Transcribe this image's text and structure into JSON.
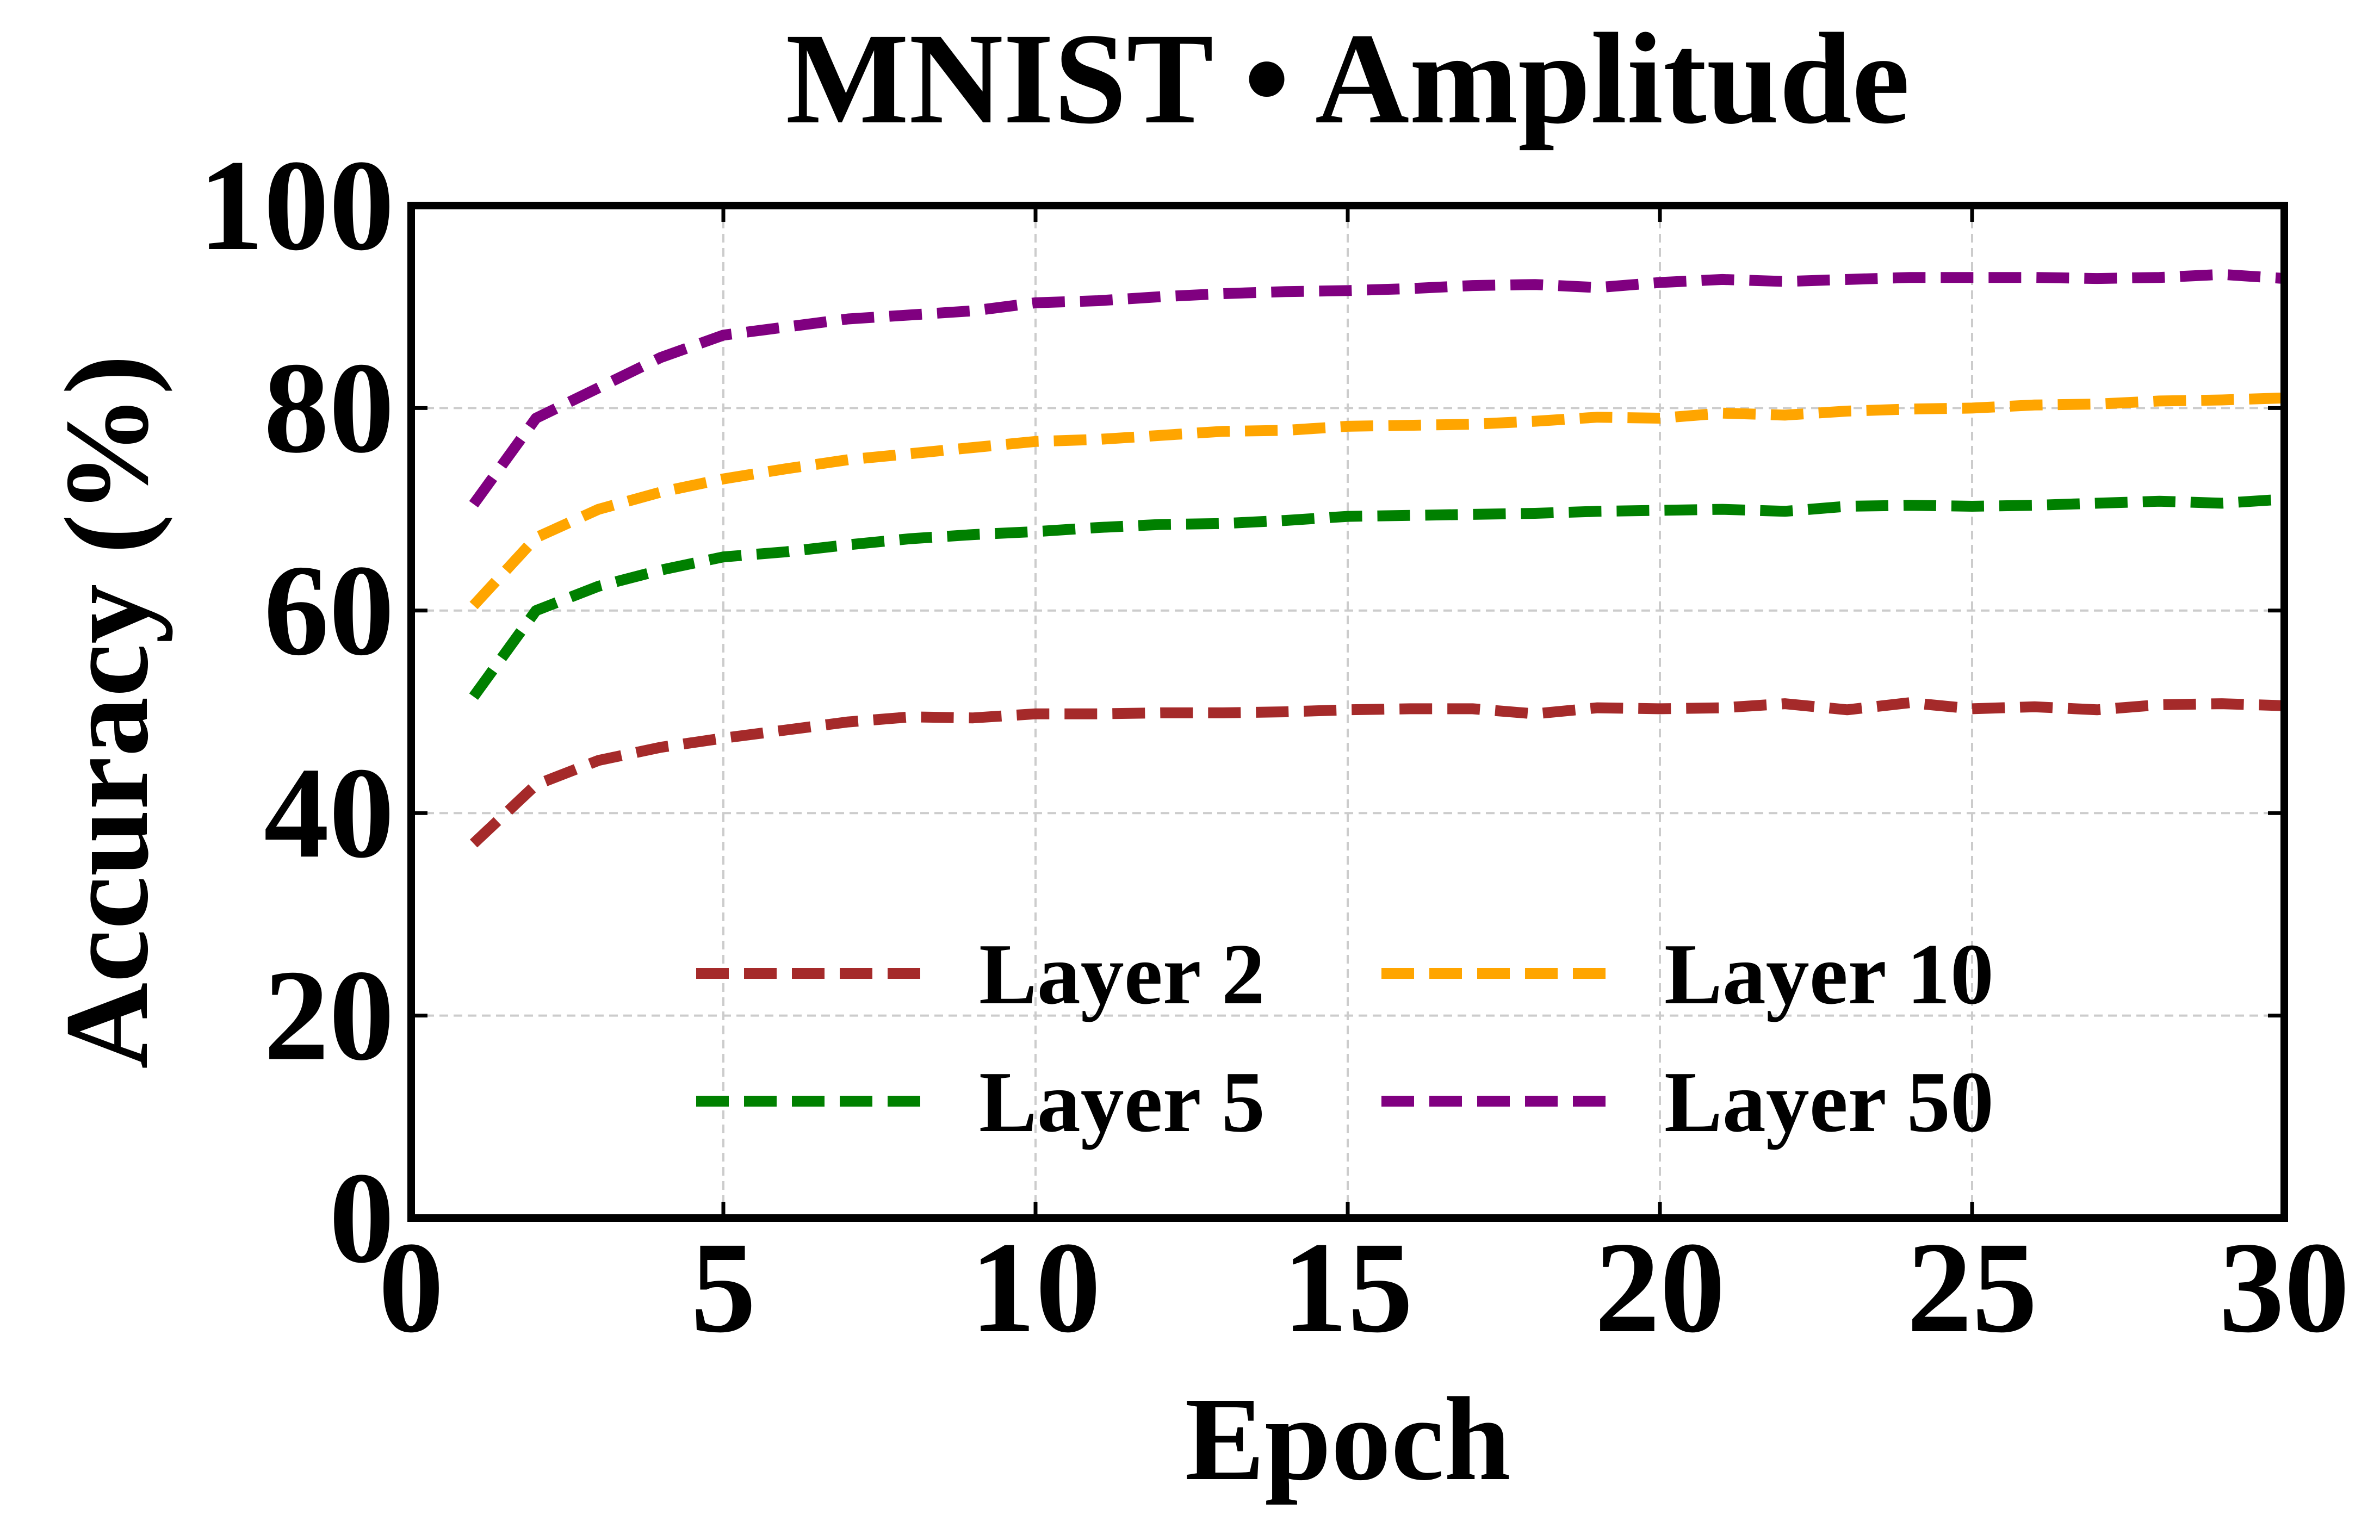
{
  "chart_data": {
    "type": "line",
    "title": "MNIST • Amplitude",
    "xlabel": "Epoch",
    "ylabel": "Accuracy (%)",
    "xlim": [
      0,
      30
    ],
    "ylim": [
      0,
      100
    ],
    "xticks": [
      0,
      5,
      10,
      15,
      20,
      25,
      30
    ],
    "yticks": [
      0,
      20,
      40,
      60,
      80,
      100
    ],
    "grid": true,
    "legend_position": "lower-center",
    "x": [
      1,
      2,
      3,
      4,
      5,
      6,
      7,
      8,
      9,
      10,
      11,
      12,
      13,
      14,
      15,
      16,
      17,
      18,
      19,
      20,
      21,
      22,
      23,
      24,
      25,
      26,
      27,
      28,
      29,
      30
    ],
    "series": [
      {
        "name": "Layer 2",
        "color": "#a52a2a",
        "values": [
          37.0,
          42.8,
          45.2,
          46.5,
          47.4,
          48.2,
          49.0,
          49.5,
          49.4,
          49.8,
          49.8,
          49.9,
          49.9,
          50.0,
          50.2,
          50.3,
          50.3,
          49.8,
          50.4,
          50.3,
          50.4,
          50.8,
          50.2,
          50.9,
          50.3,
          50.5,
          50.2,
          50.7,
          50.8,
          50.6
        ]
      },
      {
        "name": "Layer 5",
        "color": "#008000",
        "values": [
          51.5,
          60.0,
          62.4,
          64.0,
          65.3,
          65.8,
          66.5,
          67.1,
          67.5,
          67.8,
          68.2,
          68.5,
          68.6,
          68.9,
          69.3,
          69.4,
          69.5,
          69.6,
          69.8,
          69.9,
          70.0,
          69.8,
          70.3,
          70.4,
          70.3,
          70.4,
          70.6,
          70.8,
          70.6,
          71.0
        ]
      },
      {
        "name": "Layer 10",
        "color": "#ffa500",
        "values": [
          60.5,
          67.2,
          70.0,
          71.7,
          73.0,
          74.0,
          74.9,
          75.5,
          76.1,
          76.7,
          76.9,
          77.3,
          77.7,
          77.8,
          78.2,
          78.3,
          78.4,
          78.7,
          79.1,
          79.0,
          79.5,
          79.3,
          79.7,
          79.9,
          80.0,
          80.3,
          80.4,
          80.7,
          80.8,
          81.0
        ]
      },
      {
        "name": "Layer 50",
        "color": "#800080",
        "values": [
          70.5,
          79.0,
          82.0,
          85.0,
          87.2,
          88.0,
          88.8,
          89.2,
          89.6,
          90.4,
          90.6,
          91.0,
          91.3,
          91.5,
          91.6,
          91.8,
          92.1,
          92.2,
          91.9,
          92.4,
          92.7,
          92.5,
          92.7,
          92.9,
          92.9,
          92.9,
          92.8,
          92.9,
          93.2,
          92.8
        ]
      }
    ]
  }
}
